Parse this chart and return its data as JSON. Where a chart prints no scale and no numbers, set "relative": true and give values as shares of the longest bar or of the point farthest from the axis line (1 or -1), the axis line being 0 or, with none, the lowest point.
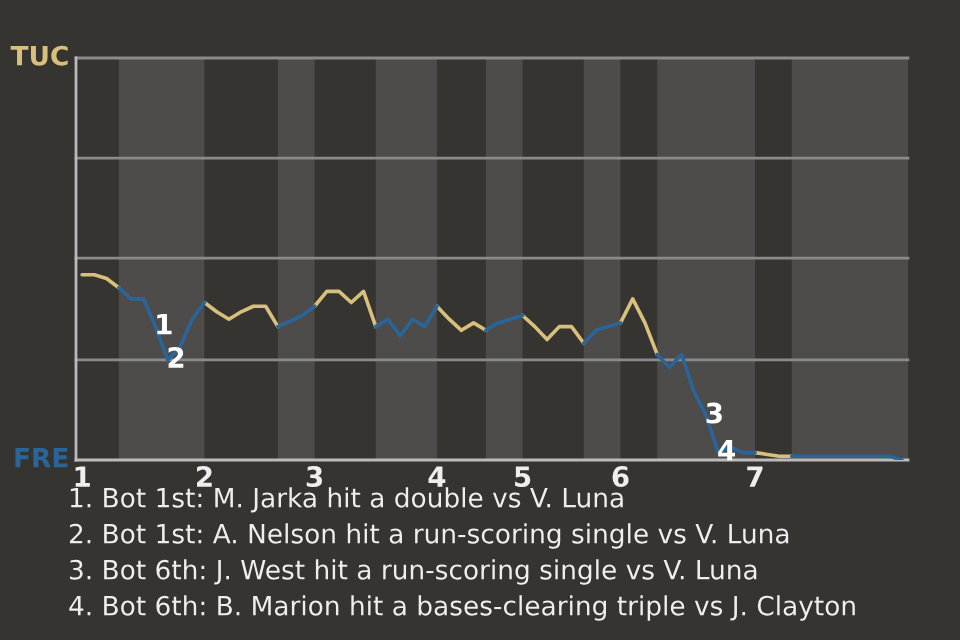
{
  "chart_data": {
    "type": "line",
    "relative": true,
    "categories": [
      "1",
      null,
      null,
      null,
      null,
      null,
      null,
      null,
      null,
      null,
      "2",
      null,
      null,
      null,
      null,
      null,
      null,
      null,
      null,
      "3",
      null,
      null,
      null,
      null,
      null,
      null,
      null,
      null,
      null,
      "4",
      null,
      null,
      null,
      null,
      null,
      null,
      "5",
      null,
      null,
      null,
      null,
      null,
      null,
      null,
      "6",
      null,
      null,
      null,
      null,
      null,
      null,
      null,
      null,
      null,
      null,
      "7",
      null,
      null,
      null,
      null,
      null,
      null,
      null,
      null,
      null,
      null,
      null,
      null
    ],
    "series": [
      {
        "name": "TUC",
        "color": "#d9bf7c",
        "values": [
          1,
          1,
          0.98,
          0.93,
          null,
          null,
          null,
          null,
          null,
          null,
          0.85,
          0.8,
          0.76,
          0.8,
          0.83,
          0.83,
          0.72,
          null,
          null,
          0.83,
          0.91,
          0.91,
          0.85,
          0.91,
          0.72,
          null,
          null,
          null,
          null,
          0.83,
          0.76,
          0.7,
          0.74,
          0.7,
          null,
          null,
          0.78,
          0.72,
          0.65,
          0.72,
          0.72,
          0.63,
          null,
          null,
          0.74,
          0.87,
          0.74,
          0.57,
          null,
          null,
          null,
          null,
          null,
          null,
          null,
          0.04,
          0.03,
          0.02,
          0.02,
          null,
          null,
          null,
          null,
          null,
          null,
          null,
          null,
          null
        ]
      },
      {
        "name": "FRE",
        "color": "#2a6599",
        "values": [
          null,
          null,
          null,
          0.93,
          0.87,
          0.87,
          0.72,
          0.54,
          0.61,
          0.76,
          0.85,
          null,
          null,
          null,
          null,
          null,
          0.72,
          0.75,
          0.78,
          0.83,
          null,
          null,
          null,
          null,
          0.72,
          0.76,
          0.67,
          0.76,
          0.72,
          0.83,
          null,
          null,
          null,
          0.7,
          0.74,
          0.76,
          0.78,
          null,
          null,
          null,
          null,
          0.63,
          0.7,
          0.72,
          0.74,
          null,
          null,
          0.57,
          0.5,
          0.57,
          0.37,
          0.24,
          0.04,
          0.07,
          0.04,
          0.04,
          null,
          null,
          0.02,
          0.02,
          0.02,
          0.02,
          0.02,
          0.02,
          0.02,
          0.02,
          0.02,
          0
        ]
      }
    ],
    "ref_lines": [
      {
        "axis": "y",
        "value": 0.54,
        "color": "#8a8a8a"
      },
      {
        "axis": "y",
        "value": 1.09,
        "color": "#8a8a8a"
      },
      {
        "axis": "y",
        "value": 1.63,
        "color": "#8a8a8a"
      },
      {
        "axis": "y",
        "value": 2.17,
        "color": "#8a8a8a"
      }
    ],
    "annotations": [
      {
        "text": "1",
        "y": 0.72
      },
      {
        "text": "2",
        "y": 0.54
      },
      {
        "text": "3",
        "y": 0.24
      },
      {
        "text": "4",
        "y": 0.04
      },
      "1. Bot 1st: M. Jarka hit a double vs V. Luna",
      "2. Bot 1st: A. Nelson hit a run-scoring single vs V. Luna",
      "3. Bot 6th: J. West hit a run-scoring single vs V. Luna",
      "4. Bot 6th: B. Marion hit a bases-clearing triple vs J. Clayton"
    ]
  }
}
